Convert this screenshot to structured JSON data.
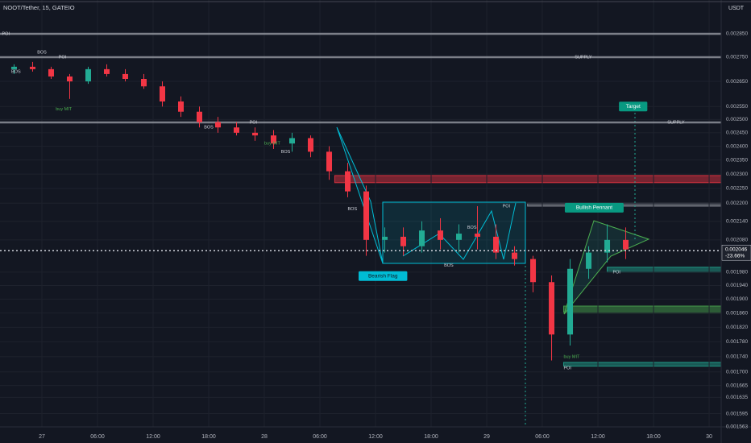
{
  "chart_data": {
    "type": "candlestick",
    "title": "NOOT/Tether, 15, GATEIO",
    "currency": "USDT",
    "log_scale": true,
    "ylim": [
      0.001563,
      0.003001
    ],
    "xlim": [
      -4.52,
      73.3
    ],
    "yticks": [
      {
        "value": 0.00285,
        "label": "0.002850"
      },
      {
        "value": 0.00275,
        "label": "0.002750"
      },
      {
        "value": 0.00265,
        "label": "0.002650"
      },
      {
        "value": 0.00255,
        "label": "0.002550"
      },
      {
        "value": 0.0025,
        "label": "0.002500"
      },
      {
        "value": 0.00245,
        "label": "0.002450"
      },
      {
        "value": 0.0024,
        "label": "0.002400"
      },
      {
        "value": 0.00235,
        "label": "0.002350"
      },
      {
        "value": 0.0023,
        "label": "0.002300"
      },
      {
        "value": 0.00225,
        "label": "0.002250"
      },
      {
        "value": 0.0022,
        "label": "0.002200"
      },
      {
        "value": 0.00214,
        "label": "0.002140"
      },
      {
        "value": 0.00208,
        "label": "0.002080"
      },
      {
        "value": 0.00198,
        "label": "0.001980"
      },
      {
        "value": 0.00194,
        "label": "0.001940"
      },
      {
        "value": 0.0019,
        "label": "0.001900"
      },
      {
        "value": 0.00186,
        "label": "0.001860"
      },
      {
        "value": 0.00182,
        "label": "0.001820"
      },
      {
        "value": 0.00178,
        "label": "0.001780"
      },
      {
        "value": 0.00174,
        "label": "0.001740"
      },
      {
        "value": 0.0017,
        "label": "0.001700"
      },
      {
        "value": 0.001665,
        "label": "0.001665"
      },
      {
        "value": 0.001635,
        "label": "0.001635"
      },
      {
        "value": 0.001595,
        "label": "0.001595"
      },
      {
        "value": 0.001563,
        "label": "0.001563"
      }
    ],
    "xticks": [
      {
        "value": 0,
        "label": "27"
      },
      {
        "value": 6,
        "label": "06:00"
      },
      {
        "value": 12,
        "label": "12:00"
      },
      {
        "value": 18,
        "label": "18:00"
      },
      {
        "value": 24,
        "label": "28"
      },
      {
        "value": 30,
        "label": "06:00"
      },
      {
        "value": 36,
        "label": "12:00"
      },
      {
        "value": 42,
        "label": "18:00"
      },
      {
        "value": 48,
        "label": "29"
      },
      {
        "value": 54,
        "label": "06:00"
      },
      {
        "value": 60,
        "label": "12:00"
      },
      {
        "value": 66,
        "label": "18:00"
      },
      {
        "value": 72,
        "label": "30"
      }
    ],
    "up_color": "#22ab94",
    "down_color": "#f23645",
    "x": [
      -3,
      -1,
      1,
      3,
      5,
      7,
      9,
      11,
      13,
      15,
      17,
      19,
      21,
      23,
      25,
      27,
      29,
      31,
      33,
      35,
      37,
      39,
      41,
      43,
      45,
      47,
      49,
      51,
      53,
      55,
      57,
      59,
      61,
      63
    ],
    "open": [
      0.0027,
      0.00271,
      0.0027,
      0.00267,
      0.00265,
      0.0027,
      0.00268,
      0.00266,
      0.00263,
      0.00257,
      0.00253,
      0.00249,
      0.00247,
      0.00245,
      0.00244,
      0.00241,
      0.00243,
      0.00238,
      0.00231,
      0.00224,
      0.00208,
      0.00209,
      0.00206,
      0.00211,
      0.00208,
      0.0021,
      0.00209,
      0.00204,
      0.00202,
      0.00195,
      0.0018,
      0.00199,
      0.00204,
      0.00208
    ],
    "high": [
      0.00272,
      0.00273,
      0.00271,
      0.00268,
      0.00271,
      0.00272,
      0.0027,
      0.00268,
      0.00265,
      0.00259,
      0.00255,
      0.00251,
      0.00249,
      0.00247,
      0.00246,
      0.00245,
      0.00244,
      0.0024,
      0.00234,
      0.00226,
      0.00212,
      0.00212,
      0.00214,
      0.00215,
      0.00213,
      0.00219,
      0.00213,
      0.00206,
      0.00203,
      0.00197,
      0.00202,
      0.00206,
      0.00213,
      0.00212
    ],
    "low": [
      0.00268,
      0.00269,
      0.00266,
      0.00258,
      0.00264,
      0.00267,
      0.00265,
      0.00262,
      0.00255,
      0.00251,
      0.00247,
      0.00245,
      0.00244,
      0.00242,
      0.00239,
      0.00238,
      0.00236,
      0.00228,
      0.00222,
      0.00203,
      0.00204,
      0.00203,
      0.00204,
      0.00205,
      0.00204,
      0.00205,
      0.00202,
      0.002,
      0.00192,
      0.00173,
      0.00177,
      0.00196,
      0.00201,
      0.00202
    ],
    "close": [
      0.00271,
      0.0027,
      0.00267,
      0.00265,
      0.0027,
      0.00268,
      0.00266,
      0.00263,
      0.00257,
      0.00253,
      0.00249,
      0.00247,
      0.00245,
      0.00244,
      0.00241,
      0.00243,
      0.00238,
      0.00231,
      0.00224,
      0.00208,
      0.00209,
      0.00206,
      0.00211,
      0.00208,
      0.0021,
      0.00209,
      0.00204,
      0.00202,
      0.00195,
      0.0018,
      0.00199,
      0.00204,
      0.00208,
      0.00205
    ],
    "levels": [
      {
        "value": 0.00285,
        "color": "#9598a1"
      },
      {
        "value": 0.00275,
        "color": "#9598a1"
      },
      {
        "value": 0.002489,
        "color": "#9598a1"
      }
    ],
    "zones": [
      {
        "from": 0.002295,
        "to": 0.00227,
        "start": 31.6,
        "color": "#f23645"
      },
      {
        "from": 0.0022,
        "to": 0.00219,
        "start": 52.4,
        "color": "#9598a1"
      },
      {
        "from": 0.001995,
        "to": 0.00198,
        "start": 61,
        "color": "#22ab94"
      },
      {
        "from": 0.00188,
        "to": 0.00186,
        "start": 56.3,
        "color": "#4caf50"
      },
      {
        "from": 0.001725,
        "to": 0.001715,
        "start": 56.3,
        "color": "#22ab94"
      }
    ],
    "last_price": {
      "value": 0.002046,
      "label": "0.002046",
      "change": -23.66,
      "change_label": "-23.66%"
    },
    "annotations": [
      {
        "text": "POI",
        "x": -4.3,
        "y": 0.00285,
        "color": "#d1d4dc"
      },
      {
        "text": "POI",
        "x": 1.8,
        "y": 0.00275,
        "color": "#d1d4dc"
      },
      {
        "text": "SUPPLY",
        "x": 57.5,
        "y": 0.00275,
        "color": "#d1d4dc"
      },
      {
        "text": "SUPPLY",
        "x": 67.5,
        "y": 0.002489,
        "color": "#d1d4dc"
      },
      {
        "text": "POI",
        "x": 22.4,
        "y": 0.002489,
        "color": "#d1d4dc"
      },
      {
        "text": "BOS",
        "x": -3.3,
        "y": 0.00269,
        "color": "#d1d4dc"
      },
      {
        "text": "BOS",
        "x": -0.5,
        "y": 0.00277,
        "color": "#d1d4dc"
      },
      {
        "text": "buy MIT",
        "x": 1.5,
        "y": 0.00254,
        "color": "#4caf50"
      },
      {
        "text": "buy MIT",
        "x": 24,
        "y": 0.00241,
        "color": "#4caf50"
      },
      {
        "text": "BOS",
        "x": 17.5,
        "y": 0.00247,
        "color": "#d1d4dc"
      },
      {
        "text": "BOS",
        "x": 25.8,
        "y": 0.00238,
        "color": "#d1d4dc"
      },
      {
        "text": "BOS",
        "x": 33,
        "y": 0.00218,
        "color": "#d1d4dc"
      },
      {
        "text": "BOS",
        "x": 45.9,
        "y": 0.00212,
        "color": "#d1d4dc"
      },
      {
        "text": "BOS",
        "x": 43.4,
        "y": 0.002,
        "color": "#d1d4dc"
      },
      {
        "text": "POI",
        "x": 49.7,
        "y": 0.00219,
        "color": "#d1d4dc"
      },
      {
        "text": "POI",
        "x": 61.6,
        "y": 0.00198,
        "color": "#d1d4dc"
      },
      {
        "text": "buy MIT",
        "x": 56.3,
        "y": 0.00174,
        "color": "#4caf50"
      },
      {
        "text": "POI",
        "x": 56.3,
        "y": 0.00171,
        "color": "#d1d4dc"
      }
    ],
    "callouts": [
      {
        "text": "Bearish Flag",
        "x": 36.8,
        "y": 0.001968,
        "color": "#00bcd4"
      },
      {
        "text": "Bullish Pennant",
        "x": 59.6,
        "y": 0.002185,
        "color": "#089981"
      },
      {
        "text": "Target",
        "x": 63.8,
        "y": 0.00255,
        "color": "#089981"
      }
    ]
  }
}
